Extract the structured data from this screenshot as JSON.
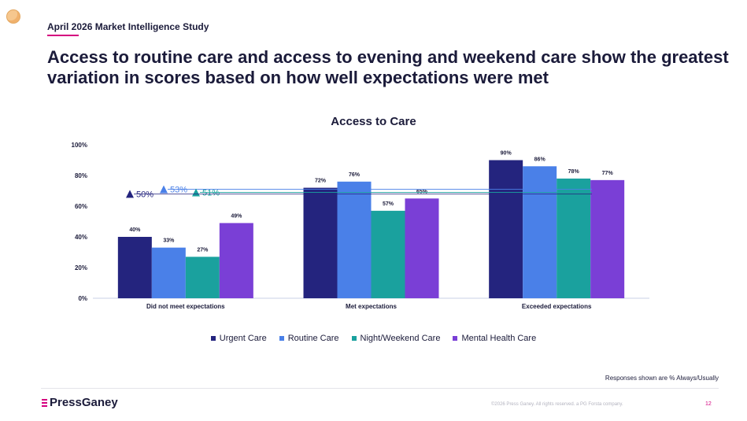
{
  "header": {
    "study_label": "April 2026 Market Intelligence Study",
    "headline": "Access to routine care and access to evening and weekend care show the greatest variation in scores based on how well expectations were met"
  },
  "chart_data": {
    "type": "bar",
    "title": "Access to Care",
    "xlabel": "",
    "ylabel": "",
    "ylim": [
      0,
      100
    ],
    "y_ticks": [
      "0%",
      "20%",
      "40%",
      "60%",
      "80%",
      "100%"
    ],
    "categories": [
      "Did not meet expectations",
      "Met expectations",
      "Exceeded expectations"
    ],
    "series": [
      {
        "name": "Urgent Care",
        "values": [
          40,
          72,
          90
        ],
        "color": "#24247e"
      },
      {
        "name": "Routine Care",
        "values": [
          33,
          76,
          86
        ],
        "color": "#4a80e8"
      },
      {
        "name": "Night/Weekend Care",
        "values": [
          27,
          57,
          78
        ],
        "color": "#1aa19e"
      },
      {
        "name": "Mental Health Care",
        "values": [
          49,
          65,
          77
        ],
        "color": "#7a3fd6"
      }
    ],
    "value_suffix": "%",
    "annotations": [
      {
        "label": "53%",
        "value": 53,
        "color": "#4a80e8"
      },
      {
        "label": "51%",
        "value": 51,
        "color": "#1aa19e"
      },
      {
        "label": "50%",
        "value": 50,
        "color": "#24247e"
      }
    ],
    "grid": false,
    "legend": "bottom"
  },
  "footer": {
    "note": "Responses shown are % Always/Usually",
    "logo_text": "PressGaney",
    "copyright": "©2026 Press Ganey. All rights reserved. a PG Forsta company.",
    "page_number": "12"
  }
}
